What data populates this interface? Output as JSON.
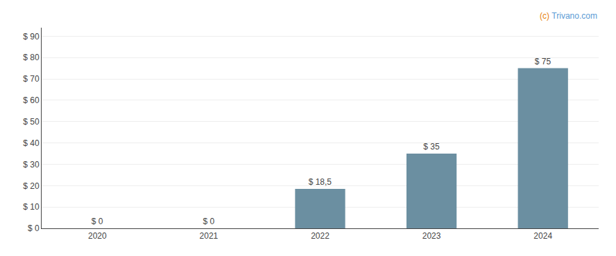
{
  "chart_data": {
    "type": "bar",
    "categories": [
      "2020",
      "2021",
      "2022",
      "2023",
      "2024"
    ],
    "values": [
      0,
      0,
      18.5,
      35,
      75
    ],
    "value_labels": [
      "$ 0",
      "$ 0",
      "$ 18,5",
      "$ 35",
      "$ 75"
    ],
    "data_labels": true,
    "color": "#6b8fa1",
    "ylim": [
      0,
      94
    ],
    "yticks": [
      {
        "value": 0,
        "label": "$ 0"
      },
      {
        "value": 10,
        "label": "$ 10"
      },
      {
        "value": 20,
        "label": "$ 20"
      },
      {
        "value": 30,
        "label": "$ 30"
      },
      {
        "value": 40,
        "label": "$ 40"
      },
      {
        "value": 50,
        "label": "$ 50"
      },
      {
        "value": 60,
        "label": "$ 60"
      },
      {
        "value": 70,
        "label": "$ 70"
      },
      {
        "value": 80,
        "label": "$ 80"
      },
      {
        "value": 90,
        "label": "$ 90"
      }
    ],
    "grid": true,
    "annotations": [
      {
        "text": "(c)",
        "color": "#e8820c"
      },
      {
        "text": " Trivano.com",
        "color": "#5b9bd5"
      }
    ]
  }
}
